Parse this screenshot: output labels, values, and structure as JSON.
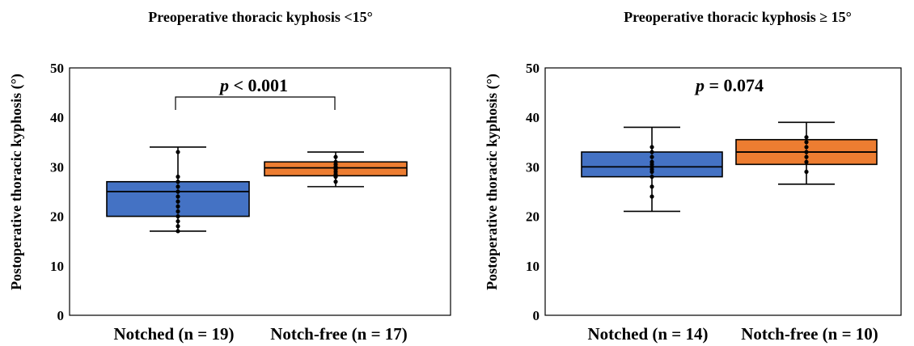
{
  "chart_data": [
    {
      "type": "box",
      "title": "Preoperative thoracic kyphosis <15°",
      "ylabel": "Postoperative thoracic kyphosis (°)",
      "ylim": [
        0,
        50
      ],
      "yticks": [
        "0",
        "10",
        "20",
        "30",
        "40",
        "50"
      ],
      "annotation": {
        "italic": "p",
        "text": " < 0.001"
      },
      "bracket": true,
      "categories": [
        "Notched (n = 19)",
        "Notch-free (n = 17)"
      ],
      "boxes": [
        {
          "color": "#4472C4",
          "min": 17,
          "q1": 20,
          "median": 25,
          "q3": 27,
          "max": 34,
          "points": [
            17,
            18,
            19,
            20,
            21,
            22,
            23,
            24,
            25,
            26,
            27,
            28,
            33
          ]
        },
        {
          "color": "#ED7D31",
          "min": 26,
          "q1": 28.2,
          "median": 29.8,
          "q3": 31,
          "max": 33,
          "points": [
            27,
            28,
            28.5,
            29,
            29.5,
            30,
            30.5,
            31,
            32
          ]
        }
      ]
    },
    {
      "type": "box",
      "title": "Preoperative thoracic kyphosis ≥ 15°",
      "ylabel": "Postoperative thoracic kyphosis (°)",
      "ylim": [
        0,
        50
      ],
      "yticks": [
        "0",
        "10",
        "20",
        "30",
        "40",
        "50"
      ],
      "annotation": {
        "italic": "p",
        "text": " = 0.074"
      },
      "bracket": false,
      "categories": [
        "Notched (n = 14)",
        "Notch-free (n = 10)"
      ],
      "boxes": [
        {
          "color": "#4472C4",
          "min": 21,
          "q1": 28,
          "median": 30,
          "q3": 33,
          "max": 38,
          "points": [
            24,
            26,
            28,
            29,
            29.5,
            30,
            30.5,
            31,
            32,
            33,
            34
          ]
        },
        {
          "color": "#ED7D31",
          "min": 26.5,
          "q1": 30.5,
          "median": 33,
          "q3": 35.5,
          "max": 39,
          "points": [
            29,
            31,
            32,
            33,
            34,
            35,
            36
          ]
        }
      ]
    }
  ]
}
